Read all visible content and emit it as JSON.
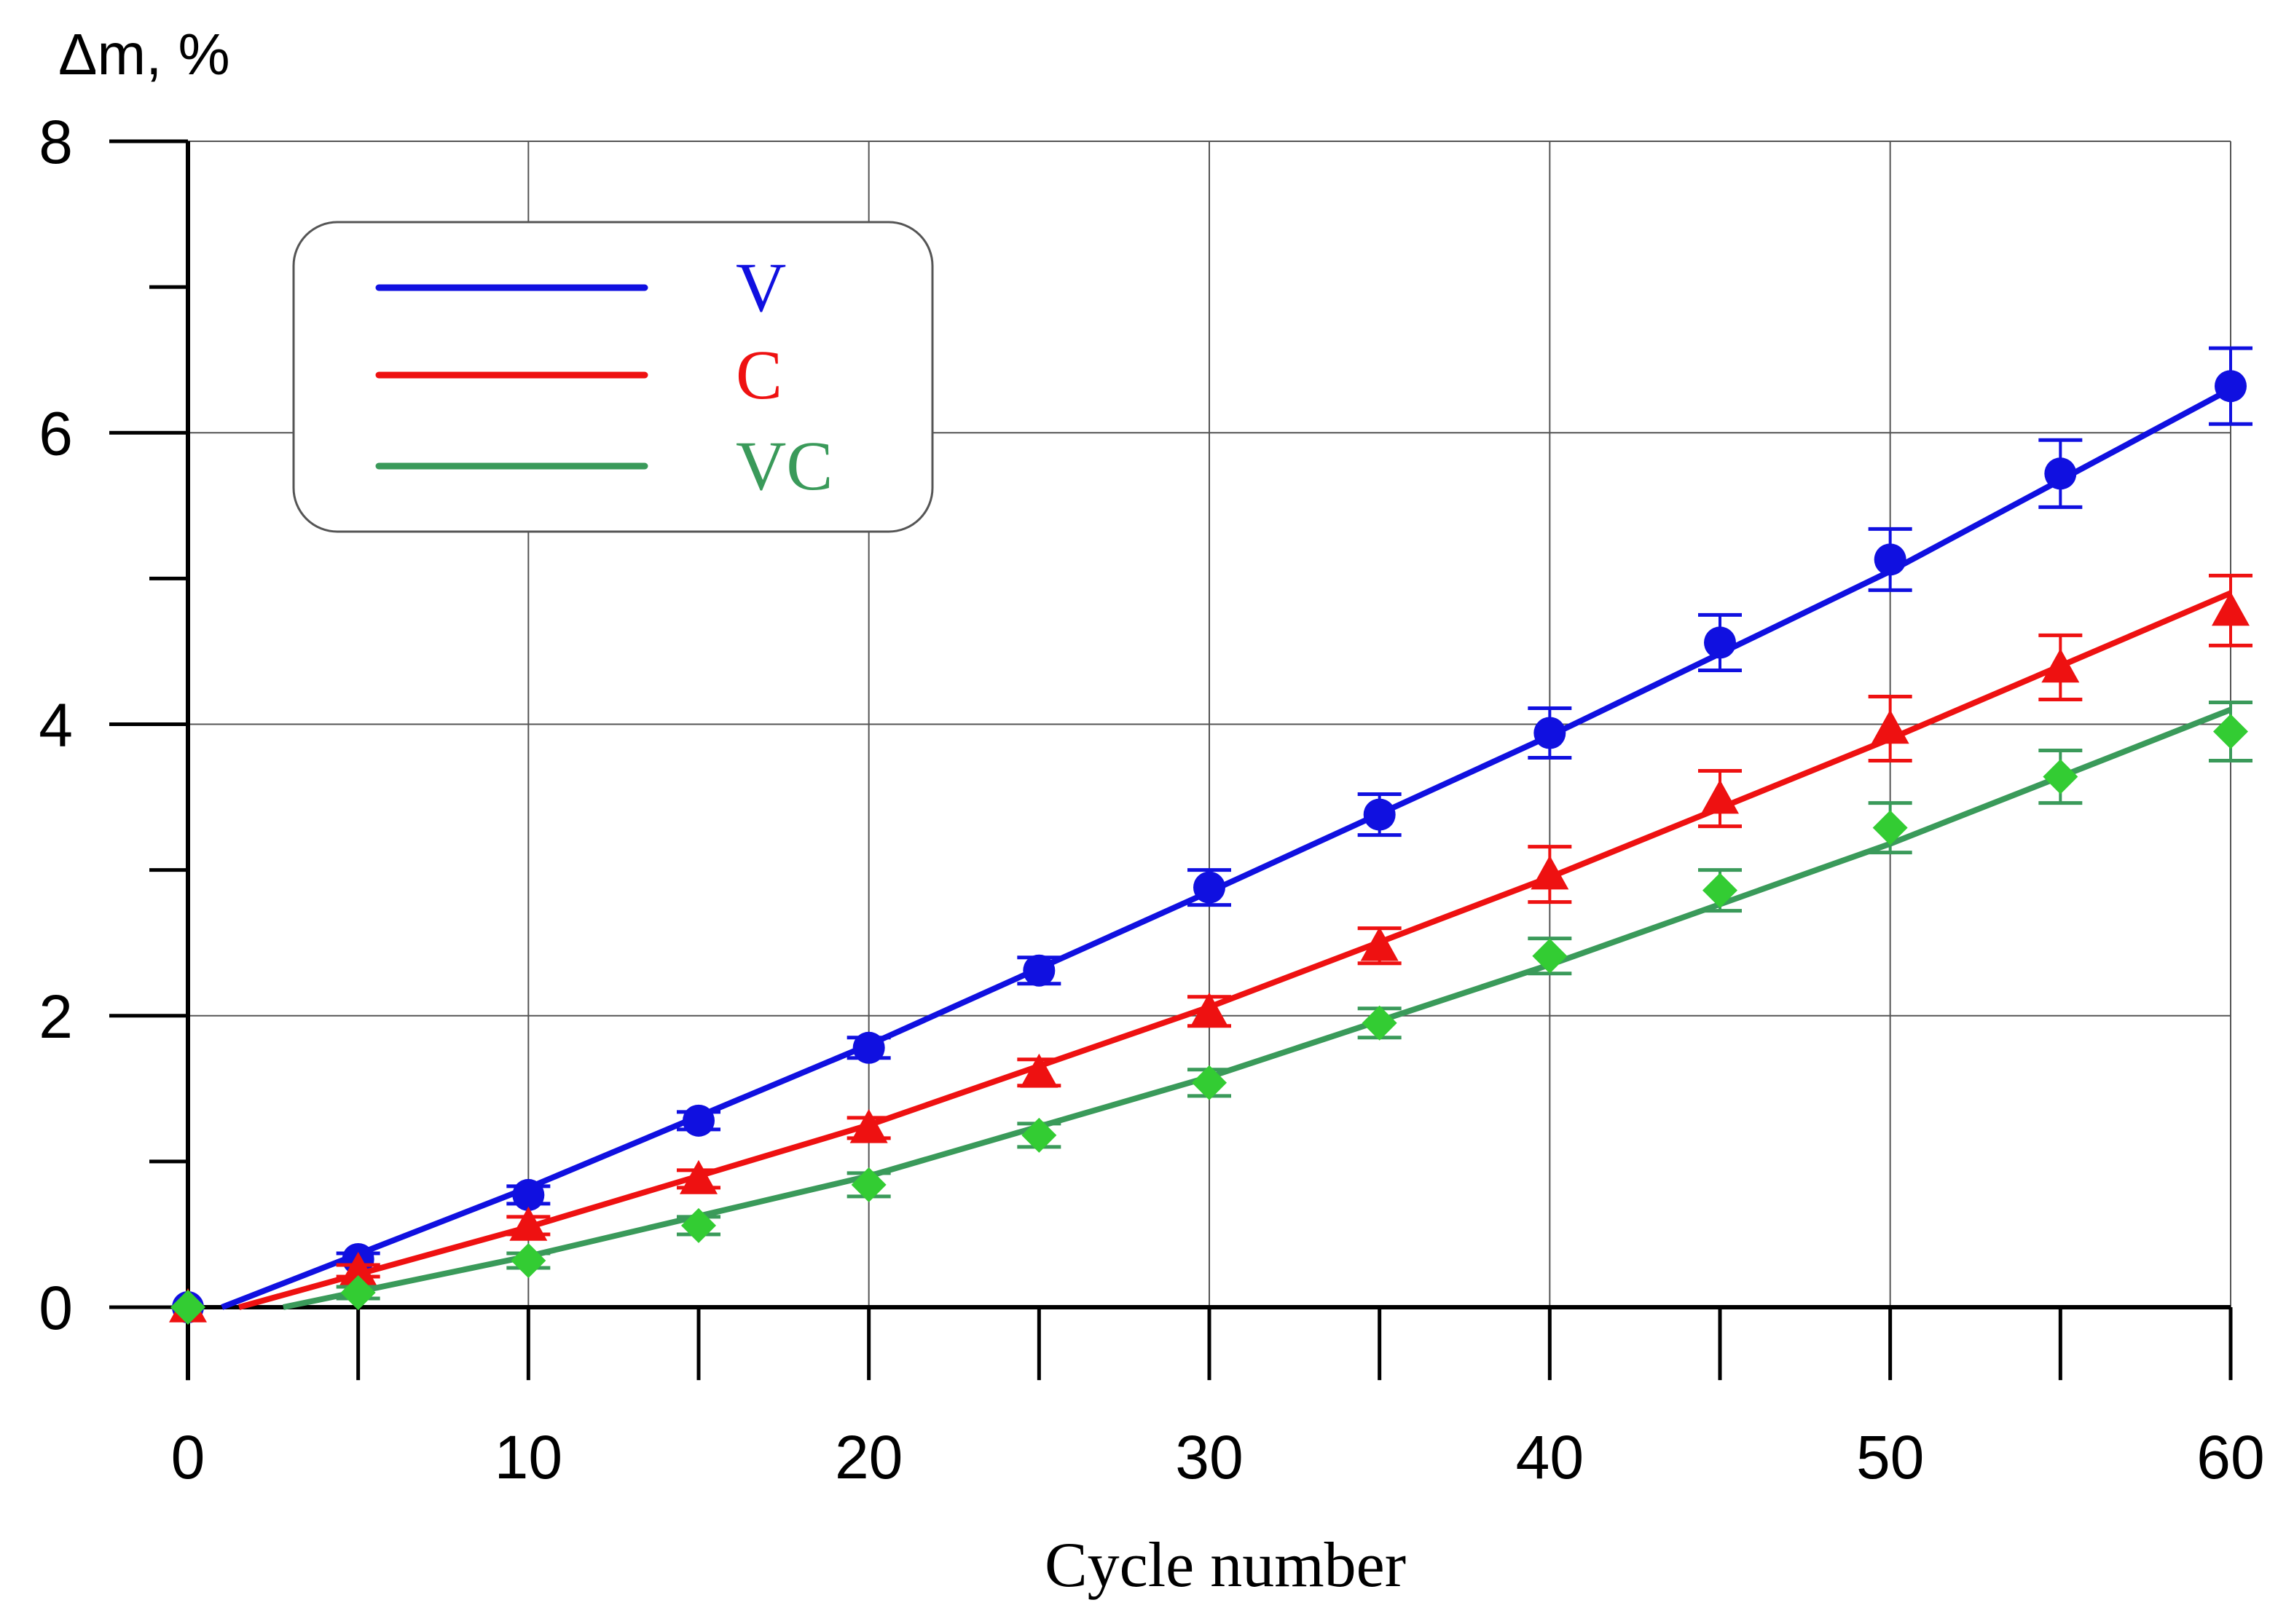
{
  "chart_data": {
    "type": "line",
    "title": "",
    "xlabel": "Cycle number",
    "ylabel": "Δm, %",
    "xlim": [
      0,
      60
    ],
    "ylim": [
      0,
      8
    ],
    "y_axis_min_drawn": -0.5,
    "x_ticks": [
      0,
      10,
      20,
      30,
      40,
      50,
      60
    ],
    "x_minor_ticks": [
      5,
      15,
      25,
      35,
      45,
      55
    ],
    "y_ticks": [
      0,
      2,
      4,
      6,
      8
    ],
    "y_minor_ticks": [
      1,
      3,
      5,
      7
    ],
    "grid": true,
    "legend_position": "top-left",
    "x": [
      0,
      5,
      10,
      15,
      20,
      25,
      30,
      35,
      40,
      45,
      50,
      55,
      60
    ],
    "series": [
      {
        "name": "V",
        "color": "#1010e0",
        "marker": "circle",
        "values": [
          0,
          0.33,
          0.77,
          1.28,
          1.78,
          2.31,
          2.88,
          3.38,
          3.94,
          4.56,
          5.13,
          5.72,
          6.32
        ],
        "errors": [
          0,
          0.04,
          0.06,
          0.06,
          0.07,
          0.09,
          0.12,
          0.14,
          0.17,
          0.19,
          0.21,
          0.23,
          0.26
        ],
        "fit": [
          [
            1,
            0
          ],
          [
            10,
            0.82
          ],
          [
            20,
            1.8
          ],
          [
            30,
            2.85
          ],
          [
            40,
            3.92
          ],
          [
            50,
            5.05
          ],
          [
            60,
            6.3
          ]
        ]
      },
      {
        "name": "C",
        "color": "#ee1111",
        "marker": "triangle",
        "values": [
          0,
          0.25,
          0.56,
          0.88,
          1.23,
          1.61,
          2.03,
          2.48,
          2.97,
          3.49,
          3.97,
          4.39,
          4.78
        ],
        "errors": [
          0,
          0.04,
          0.06,
          0.06,
          0.07,
          0.09,
          0.1,
          0.12,
          0.19,
          0.19,
          0.22,
          0.22,
          0.24
        ],
        "fit": [
          [
            1.5,
            0
          ],
          [
            10,
            0.55
          ],
          [
            20,
            1.25
          ],
          [
            30,
            2.06
          ],
          [
            40,
            2.95
          ],
          [
            50,
            3.9
          ],
          [
            60,
            4.9
          ]
        ]
      },
      {
        "name": "VC",
        "color": "#3a9a5a",
        "marker": "diamond",
        "marker_color": "#33cc33",
        "values": [
          0,
          0.1,
          0.32,
          0.56,
          0.84,
          1.18,
          1.54,
          1.95,
          2.41,
          2.86,
          3.29,
          3.64,
          3.95
        ],
        "errors": [
          0,
          0.04,
          0.05,
          0.06,
          0.08,
          0.08,
          0.09,
          0.1,
          0.12,
          0.14,
          0.17,
          0.18,
          0.2
        ],
        "fit": [
          [
            2.8,
            0
          ],
          [
            10,
            0.35
          ],
          [
            20,
            0.9
          ],
          [
            30,
            1.58
          ],
          [
            40,
            2.35
          ],
          [
            50,
            3.18
          ],
          [
            60,
            4.1
          ]
        ]
      }
    ]
  }
}
